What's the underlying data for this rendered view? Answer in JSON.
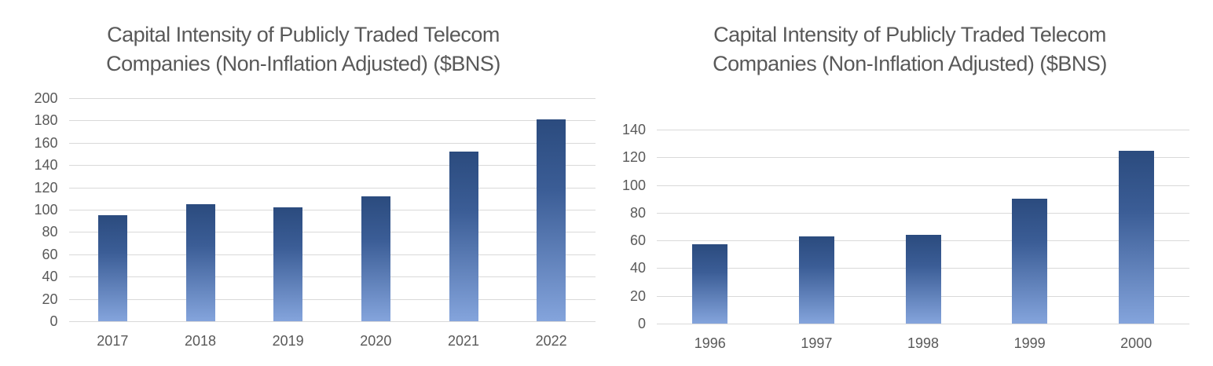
{
  "figure": {
    "background": "#ffffff",
    "text_color": "#595959",
    "gridline_color": "#d9d9d9",
    "bar_gradient_top": "#2b4b7e",
    "bar_gradient_bottom": "#84a4dc"
  },
  "chart_data": [
    {
      "type": "bar",
      "title": "Capital Intensity of Publicly Traded Telecom Companies (Non-Inflation Adjusted) ($BNS)",
      "title_lines": [
        "Capital Intensity of Publicly Traded Telecom",
        "Companies (Non-Inflation Adjusted) ($BNS)"
      ],
      "categories": [
        "2017",
        "2018",
        "2019",
        "2020",
        "2021",
        "2022"
      ],
      "values": [
        95,
        105,
        102,
        112,
        152,
        181
      ],
      "xlabel": "",
      "ylabel": "",
      "ylim": [
        0,
        200
      ],
      "ytick_step": 20,
      "ytick_labels": [
        "0",
        "20",
        "40",
        "60",
        "80",
        "100",
        "120",
        "140",
        "160",
        "180",
        "200"
      ],
      "grid": true,
      "legend": false
    },
    {
      "type": "bar",
      "title": "Capital Intensity of Publicly Traded Telecom Companies (Non-Inflation Adjusted) ($BNS)",
      "title_lines": [
        "Capital Intensity of Publicly Traded Telecom",
        "Companies (Non-Inflation Adjusted) ($BNS)"
      ],
      "categories": [
        "1996",
        "1997",
        "1998",
        "1999",
        "2000"
      ],
      "values": [
        57,
        63,
        64,
        90,
        125
      ],
      "xlabel": "",
      "ylabel": "",
      "ylim": [
        0,
        140
      ],
      "ytick_step": 20,
      "ytick_labels": [
        "0",
        "20",
        "40",
        "60",
        "80",
        "100",
        "120",
        "140"
      ],
      "grid": true,
      "legend": false
    }
  ]
}
